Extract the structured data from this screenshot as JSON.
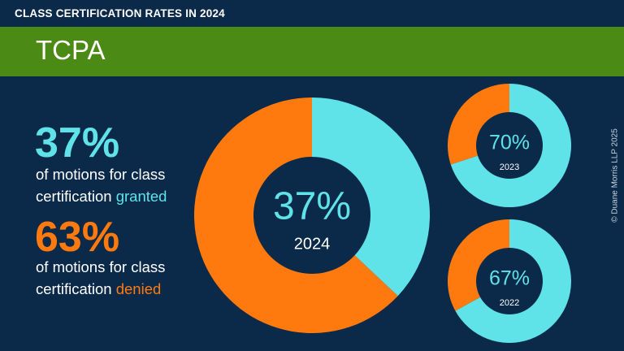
{
  "header": {
    "title": "CLASS CERTIFICATION RATES IN 2024",
    "banner": "TCPA"
  },
  "stats": {
    "granted": {
      "pct": "37%",
      "line1": "of motions for class",
      "line2_prefix": "certification ",
      "line2_word": "granted"
    },
    "denied": {
      "pct": "63%",
      "line1": "of motions for class",
      "line2_prefix": "certification ",
      "line2_word": "denied"
    }
  },
  "colors": {
    "background": "#0b2a4a",
    "banner": "#4c8a16",
    "granted": "#5fe3e8",
    "denied": "#ff7a0e"
  },
  "copyright": "© Duane Morris LLP 2025",
  "chart_data": [
    {
      "type": "pie",
      "center_label": "37%",
      "year_label": "2024",
      "categories": [
        "granted",
        "denied"
      ],
      "values": [
        37,
        63
      ]
    },
    {
      "type": "pie",
      "center_label": "70%",
      "year_label": "2023",
      "categories": [
        "granted",
        "denied"
      ],
      "values": [
        70,
        30
      ]
    },
    {
      "type": "pie",
      "center_label": "67%",
      "year_label": "2022",
      "categories": [
        "granted",
        "denied"
      ],
      "values": [
        67,
        33
      ]
    }
  ]
}
